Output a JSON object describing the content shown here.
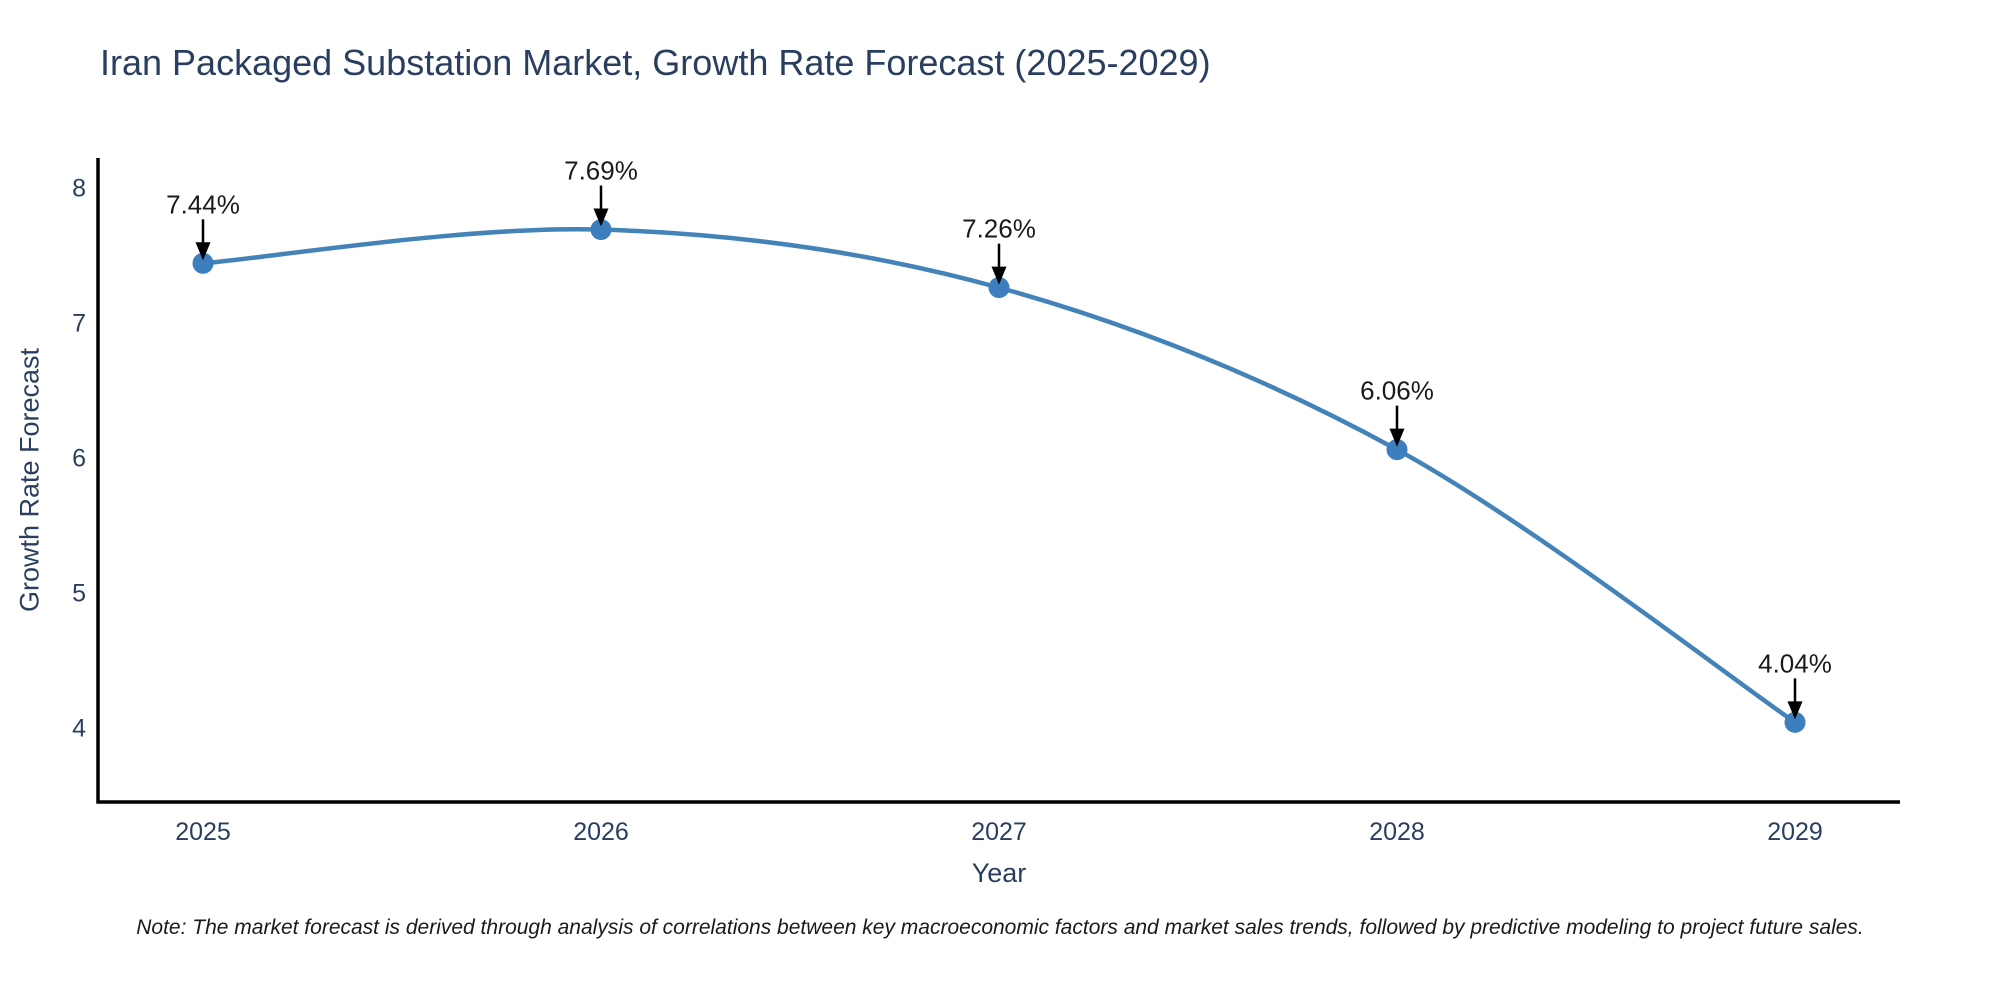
{
  "chart_data": {
    "type": "line",
    "title": "Iran Packaged Substation Market, Growth Rate Forecast (2025-2029)",
    "x": [
      "2025",
      "2026",
      "2027",
      "2028",
      "2029"
    ],
    "series": [
      {
        "name": "Growth Rate Forecast",
        "values": [
          7.44,
          7.69,
          7.26,
          6.06,
          4.04
        ]
      }
    ],
    "point_labels": [
      "7.44%",
      "7.69%",
      "7.26%",
      "6.06%",
      "4.04%"
    ],
    "xlabel": "Year",
    "ylabel": "Growth Rate Forecast",
    "yticks": [
      4,
      5,
      6,
      7,
      8
    ],
    "ylim": [
      3.45,
      8.22
    ],
    "grid": false,
    "legend": "none",
    "line_shape": "spline",
    "annotation_style": "value-label-with-down-arrow",
    "note": "Note: The market forecast is derived through analysis of correlations between key macroeconomic factors and market sales trends, followed by predictive modeling to project future sales.",
    "colors": {
      "line": "#4483b8",
      "marker": "#3d7ebf",
      "title_text": "#2a3f5f",
      "tick_text": "#2a3f5f",
      "annotation_text": "#1a1a1a",
      "arrow": "#000000",
      "axis": "#000000",
      "background": "#ffffff"
    }
  }
}
